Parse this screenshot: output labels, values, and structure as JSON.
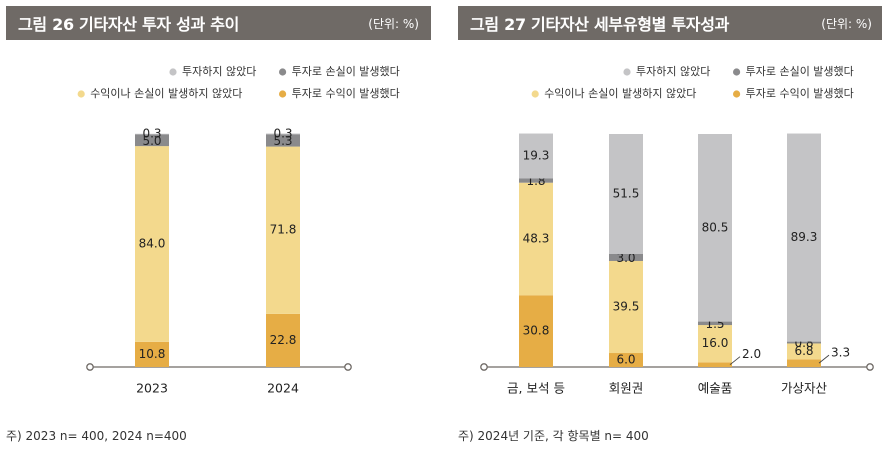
{
  "colors": {
    "not_invested": "#c4c4c6",
    "loss": "#8a8a8c",
    "no_gain_no_loss": "#f3d98d",
    "gain": "#e6ad45",
    "axis": "#6f6a66"
  },
  "left": {
    "title": "그림 26  기타자산 투자 성과 추이",
    "unit": "(단위: %)",
    "note": "주) 2023 n= 400, 2024 n=400",
    "legend": [
      {
        "key": "not_invested",
        "label": "투자하지 않았다"
      },
      {
        "key": "loss",
        "label": "투자로 손실이 발생했다"
      },
      {
        "key": "no_gain_no_loss",
        "label": "수익이나 손실이 발생하지 않았다"
      },
      {
        "key": "gain",
        "label": "투자로 수익이 발생했다"
      }
    ]
  },
  "right": {
    "title": "그림 27  기타자산 세부유형별 투자성과",
    "unit": "(단위: %)",
    "note": "주) 2024년 기준, 각 항목별 n= 400",
    "legend": [
      {
        "key": "not_invested",
        "label": "투자하지 않았다"
      },
      {
        "key": "loss",
        "label": "투자로 손실이 발생했다"
      },
      {
        "key": "no_gain_no_loss",
        "label": "수익이나 손실이 발생하지 않았다"
      },
      {
        "key": "gain",
        "label": "투자로 수익이 발생했다"
      }
    ]
  },
  "chart_data": [
    {
      "type": "bar",
      "stacked": true,
      "title": "기타자산 투자 성과 추이",
      "unit": "%",
      "categories": [
        "2023",
        "2024"
      ],
      "series": [
        {
          "name": "투자로 수익이 발생했다",
          "key": "gain",
          "values": [
            10.8,
            22.8
          ]
        },
        {
          "name": "수익이나 손실이 발생하지 않았다",
          "key": "no_gain_no_loss",
          "values": [
            84.0,
            71.8
          ]
        },
        {
          "name": "투자로 손실이 발생했다",
          "key": "loss",
          "values": [
            5.0,
            5.3
          ]
        },
        {
          "name": "투자하지 않았다",
          "key": "not_invested",
          "values": [
            0.3,
            0.3
          ]
        }
      ],
      "ylim": [
        0,
        100
      ],
      "legend_position": "top-right",
      "grid": false
    },
    {
      "type": "bar",
      "stacked": true,
      "title": "기타자산 세부유형별 투자성과",
      "unit": "%",
      "categories": [
        "금, 보석 등",
        "회원권",
        "예술품",
        "가상자산"
      ],
      "series": [
        {
          "name": "투자로 수익이 발생했다",
          "key": "gain",
          "values": [
            30.8,
            6.0,
            2.0,
            3.3
          ]
        },
        {
          "name": "수익이나 손실이 발생하지 않았다",
          "key": "no_gain_no_loss",
          "values": [
            48.3,
            39.5,
            16.0,
            6.8
          ]
        },
        {
          "name": "투자로 손실이 발생했다",
          "key": "loss",
          "values": [
            1.8,
            3.0,
            1.5,
            0.8
          ]
        },
        {
          "name": "투자하지 않았다",
          "key": "not_invested",
          "values": [
            19.3,
            51.5,
            80.5,
            89.3
          ]
        }
      ],
      "ylim": [
        0,
        100
      ],
      "legend_position": "top-right",
      "grid": false
    }
  ]
}
